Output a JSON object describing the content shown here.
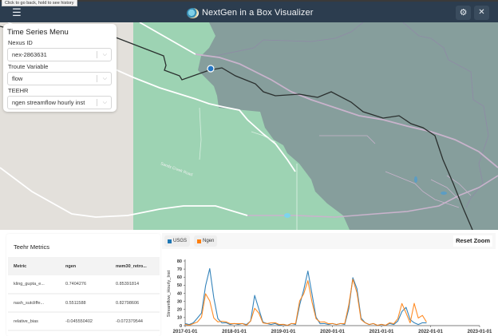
{
  "header": {
    "title": "NextGen in a Box Visualizer",
    "tooltip": "Click to go back, hold to see history",
    "menu_icon": "☰",
    "settings_icon": "⚙",
    "close_icon": "✕"
  },
  "map": {
    "road_label": "Sands Creek Road",
    "selected_marker": "nex-2863631"
  },
  "time_series_menu": {
    "title": "Time Series Menu",
    "fields": [
      {
        "label": "Nexus ID",
        "value": "nex-2863631"
      },
      {
        "label": "Troute Variable",
        "value": "flow"
      },
      {
        "label": "TEEHR",
        "value": "ngen streamflow hourly inst"
      }
    ],
    "chevron": "⌵"
  },
  "metrics": {
    "title": "Teehr Metrics",
    "columns": [
      "Metric",
      "ngen",
      "nwm30_retro..."
    ],
    "rows": [
      [
        "kling_gupta_e...",
        "0.7404276",
        "0.85391814"
      ],
      [
        "nash_sutcliffe...",
        "0.5511588",
        "0.82798606"
      ],
      [
        "relative_bias",
        "-0.045550402",
        "-0.072379544"
      ]
    ]
  },
  "chart": {
    "reset_zoom_label": "Reset Zoom",
    "legend": [
      {
        "name": "USGS",
        "color": "#1f77b4"
      },
      {
        "name": "Ngen",
        "color": "#ff7f0e"
      }
    ]
  },
  "chart_data": {
    "type": "line",
    "title": "",
    "xlabel": "",
    "ylabel": "Streamflow_Hourly_Inst",
    "ylim": [
      0,
      80
    ],
    "yticks": [
      "0",
      "10",
      "20",
      "30",
      "40",
      "50",
      "60",
      "70",
      "80"
    ],
    "xticks": [
      "2017-01-01",
      "2018-01-01",
      "2019-01-01",
      "2020-01-01",
      "2021-01-01",
      "2022-01-01",
      "2023-01-01"
    ],
    "legend_position": "top-left",
    "grid": false,
    "x": [
      "2017-01",
      "2017-02",
      "2017-03",
      "2017-04",
      "2017-05",
      "2017-06",
      "2017-07",
      "2017-08",
      "2017-09",
      "2017-10",
      "2017-11",
      "2017-12",
      "2018-01",
      "2018-02",
      "2018-03",
      "2018-04",
      "2018-05",
      "2018-06",
      "2018-07",
      "2018-08",
      "2018-09",
      "2018-10",
      "2018-11",
      "2018-12",
      "2019-01",
      "2019-02",
      "2019-03",
      "2019-04",
      "2019-05",
      "2019-06",
      "2019-07",
      "2019-08",
      "2019-09",
      "2019-10",
      "2019-11",
      "2019-12",
      "2020-01",
      "2020-02",
      "2020-03",
      "2020-04",
      "2020-05",
      "2020-06",
      "2020-07",
      "2020-08",
      "2020-09",
      "2020-10",
      "2020-11",
      "2020-12",
      "2021-01",
      "2021-02",
      "2021-03",
      "2021-04",
      "2021-05",
      "2021-06",
      "2021-07",
      "2021-08",
      "2021-09",
      "2021-10",
      "2021-11",
      "2021-12"
    ],
    "series": [
      {
        "name": "USGS",
        "color": "#1f77b4",
        "values": [
          2,
          2,
          3,
          10,
          15,
          50,
          70,
          35,
          8,
          4,
          3,
          2,
          2,
          2,
          2,
          2,
          5,
          38,
          20,
          5,
          2,
          2,
          2,
          1,
          1,
          1,
          2,
          2,
          25,
          45,
          67,
          40,
          10,
          3,
          2,
          2,
          2,
          2,
          2,
          2,
          20,
          60,
          45,
          10,
          3,
          2,
          2,
          1,
          1,
          1,
          2,
          2,
          5,
          18,
          22,
          8,
          3,
          2,
          3,
          4
        ]
      },
      {
        "name": "Ngen",
        "color": "#ff7f0e",
        "values": [
          1,
          1,
          2,
          5,
          10,
          40,
          30,
          10,
          4,
          6,
          4,
          3,
          2,
          3,
          2,
          1,
          5,
          22,
          15,
          4,
          2,
          4,
          3,
          2,
          1,
          1,
          2,
          3,
          30,
          40,
          55,
          30,
          8,
          5,
          4,
          3,
          2,
          2,
          2,
          3,
          25,
          58,
          40,
          8,
          3,
          2,
          2,
          1,
          1,
          1,
          3,
          3,
          8,
          28,
          15,
          4,
          27,
          10,
          12,
          5
        ]
      }
    ]
  }
}
